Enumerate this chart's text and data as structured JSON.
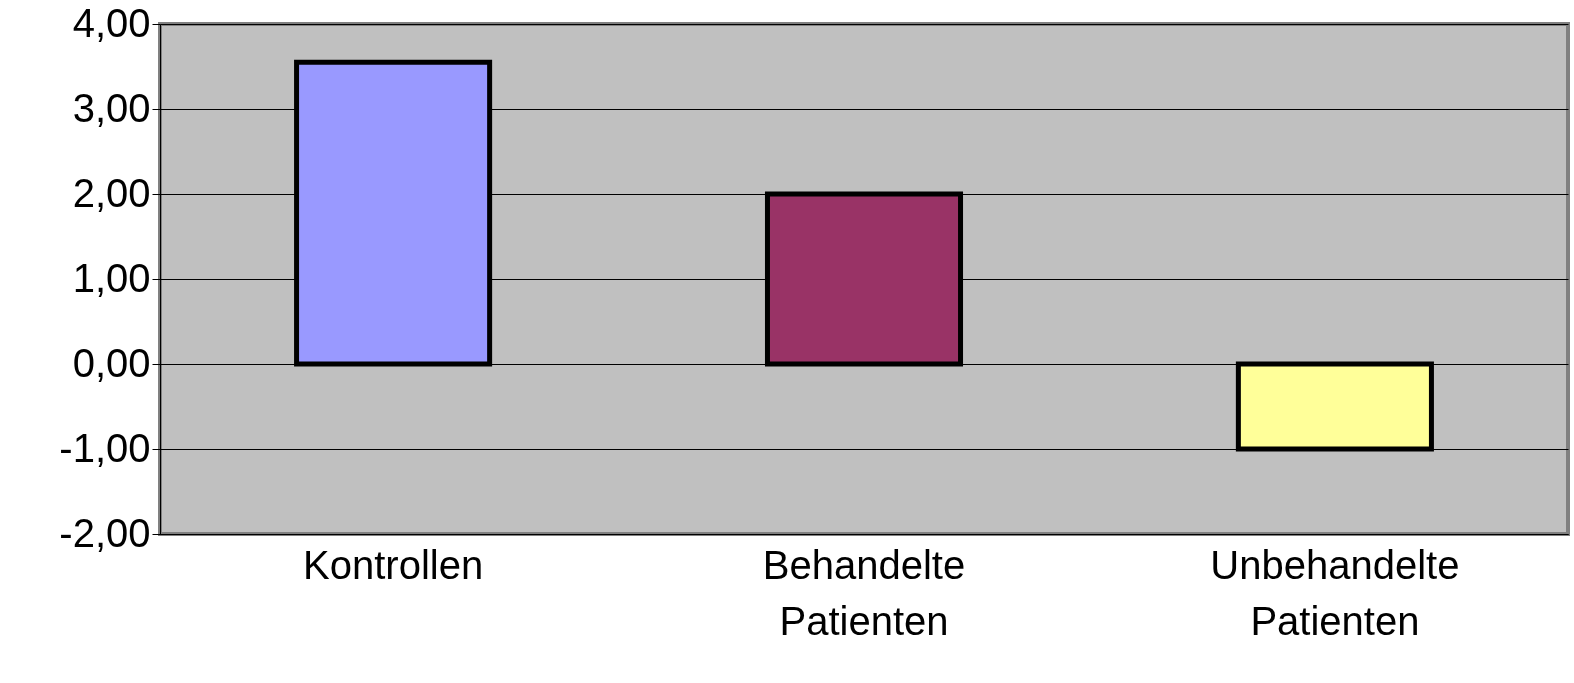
{
  "chart_data": {
    "type": "bar",
    "categories": [
      "Kontrollen",
      "Behandelte Patienten",
      "Unbehandelte Patienten"
    ],
    "values": [
      3.55,
      2.0,
      -1.0
    ],
    "colors": [
      "#9999ff",
      "#993366",
      "#ffff99"
    ],
    "ylim": [
      -2,
      4
    ],
    "yticks": [
      {
        "value": -2,
        "label": "-2,00"
      },
      {
        "value": -1,
        "label": "-1,00"
      },
      {
        "value": 0,
        "label": "0,00"
      },
      {
        "value": 1,
        "label": "1,00"
      },
      {
        "value": 2,
        "label": "2,00"
      },
      {
        "value": 3,
        "label": "3,00"
      },
      {
        "value": 4,
        "label": "4,00"
      }
    ],
    "grid": "y",
    "legend": false
  }
}
